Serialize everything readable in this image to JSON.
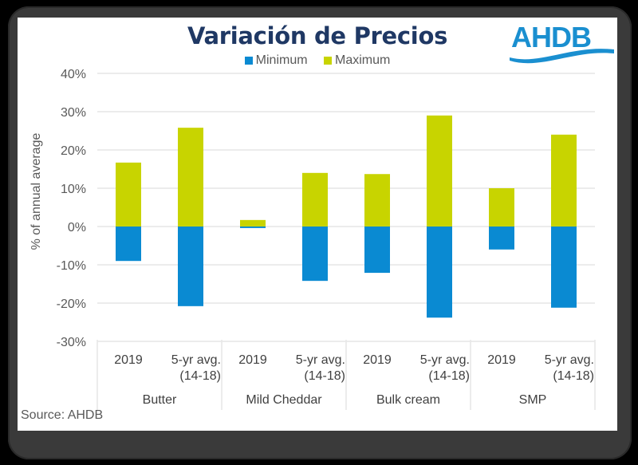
{
  "title": "Variación de Precios",
  "logo": {
    "text": "AHDB",
    "color": "#1a8fd0"
  },
  "source": "Source: AHDB",
  "chart_data": {
    "type": "bar",
    "title": "Variación de Precios",
    "xlabel": "",
    "ylabel": "% of annual average",
    "ylim": [
      -30,
      40
    ],
    "yticks": [
      40,
      30,
      20,
      10,
      0,
      -10,
      -20,
      -30
    ],
    "ytick_labels": [
      "40%",
      "30%",
      "20%",
      "10%",
      "0%",
      "-10%",
      "-20%",
      "-30%"
    ],
    "grid": true,
    "legend_position": "top",
    "groups": [
      "Butter",
      "Mild Cheddar",
      "Bulk cream",
      "SMP"
    ],
    "categories": [
      {
        "group": "Butter",
        "label": [
          "2019"
        ]
      },
      {
        "group": "Butter",
        "label": [
          "5-yr avg.",
          "(14-18)"
        ]
      },
      {
        "group": "Mild Cheddar",
        "label": [
          "2019"
        ]
      },
      {
        "group": "Mild Cheddar",
        "label": [
          "5-yr avg.",
          "(14-18)"
        ]
      },
      {
        "group": "Bulk cream",
        "label": [
          "2019"
        ]
      },
      {
        "group": "Bulk cream",
        "label": [
          "5-yr avg.",
          "(14-18)"
        ]
      },
      {
        "group": "SMP",
        "label": [
          "2019"
        ]
      },
      {
        "group": "SMP",
        "label": [
          "5-yr avg.",
          "(14-18)"
        ]
      }
    ],
    "series": [
      {
        "name": "Minimum",
        "color": "#0a8ad2",
        "values": [
          -9.0,
          -20.8,
          -0.4,
          -14.2,
          -12.1,
          -23.8,
          -6.0,
          -21.2
        ]
      },
      {
        "name": "Maximum",
        "color": "#c8d400",
        "values": [
          16.7,
          25.8,
          1.7,
          14.0,
          13.7,
          29.0,
          10.0,
          24.0
        ]
      }
    ]
  }
}
